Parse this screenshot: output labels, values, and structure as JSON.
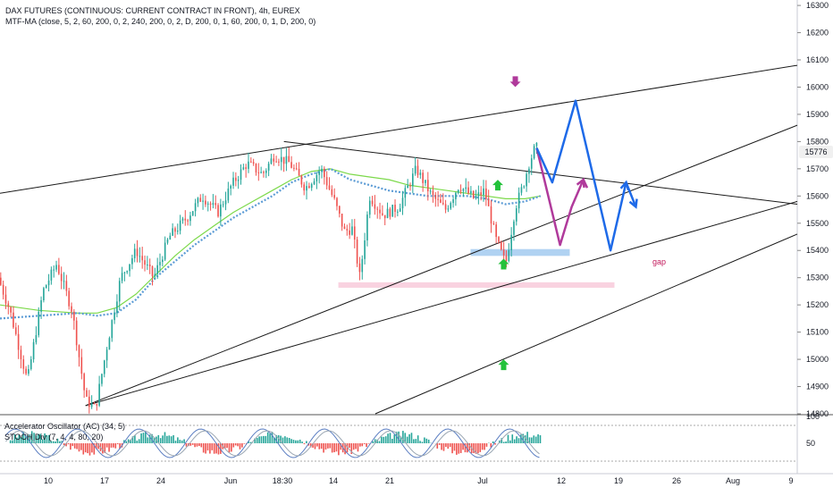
{
  "header": {
    "symbol_line": "DAX FUTURES (CONTINUOUS: CURRENT CONTRACT IN FRONT), 4h, EUREX",
    "indicator_line": "MTF-MA (close, 5, 2, 60, 200, 0, 2, 240, 200, 0, 2, D, 200, 0, 1, 60, 200, 0, 1, D, 200, 0)"
  },
  "oscillator": {
    "ac_label": "Accelerator Oscillator (AC) (34, 5)",
    "stoch_label": "STOCH Div (7, 4, 4, 80, 20)",
    "scale_top": "100",
    "scale_mid": "50"
  },
  "last_price": "15776",
  "annotations": {
    "gap_label": "gap"
  },
  "colors": {
    "up": "#26a69a",
    "down": "#ef5350",
    "forecast_blue": "#1e6ae8",
    "forecast_purple": "#b03a9b",
    "green_arrow": "#23c23b",
    "gap_zone": "#9cc7ef",
    "pink_zone": "#f8c7d8",
    "ma_blue": "#5b9bd5",
    "ma_green": "#7cd94a"
  },
  "chart_data": {
    "type": "candlestick",
    "title": "DAX FUTURES (CONTINUOUS: CURRENT CONTRACT IN FRONT), 4h, EUREX",
    "y_axis": {
      "ticks": [
        14800,
        14900,
        15000,
        15100,
        15200,
        15300,
        15400,
        15500,
        15600,
        15700,
        15800,
        15900,
        16000,
        16100,
        16200,
        16300
      ],
      "range": [
        14800,
        16320
      ]
    },
    "x_axis": {
      "tick_labels": [
        "10",
        "17",
        "24",
        "Jun",
        "18:30",
        "14",
        "21",
        "Jul",
        "12",
        "19",
        "26",
        "Aug",
        "9"
      ]
    },
    "price_path": [
      [
        0,
        15300
      ],
      [
        0.6,
        15180
      ],
      [
        1.5,
        14920
      ],
      [
        2.3,
        15250
      ],
      [
        3,
        15350
      ],
      [
        3.8,
        15180
      ],
      [
        4.5,
        14850
      ],
      [
        5,
        14820
      ],
      [
        5.6,
        15050
      ],
      [
        6.3,
        15300
      ],
      [
        7.1,
        15400
      ],
      [
        8,
        15300
      ],
      [
        8.8,
        15450
      ],
      [
        9.7,
        15520
      ],
      [
        10.5,
        15600
      ],
      [
        11.3,
        15540
      ],
      [
        12,
        15640
      ],
      [
        12.8,
        15720
      ],
      [
        13.6,
        15680
      ],
      [
        14.2,
        15750
      ],
      [
        15,
        15720
      ],
      [
        15.8,
        15630
      ],
      [
        16.6,
        15700
      ],
      [
        17.3,
        15580
      ],
      [
        17.8,
        15470
      ],
      [
        18.2,
        15480
      ],
      [
        18.6,
        15300
      ],
      [
        19.1,
        15600
      ],
      [
        19.8,
        15530
      ],
      [
        20.6,
        15560
      ],
      [
        21.5,
        15700
      ],
      [
        22.3,
        15600
      ],
      [
        23,
        15550
      ],
      [
        23.7,
        15640
      ],
      [
        24.5,
        15590
      ],
      [
        25,
        15620
      ],
      [
        25.6,
        15440
      ],
      [
        26.1,
        15350
      ],
      [
        26.6,
        15560
      ],
      [
        27,
        15640
      ],
      [
        27.3,
        15720
      ],
      [
        27.6,
        15776
      ]
    ],
    "forecast_blue": [
      [
        27.6,
        15776
      ],
      [
        28.4,
        15650
      ],
      [
        29.6,
        15950
      ],
      [
        31.4,
        15400
      ],
      [
        32.2,
        15650
      ],
      [
        32.7,
        15560
      ]
    ],
    "forecast_purple": [
      [
        27.6,
        15776
      ],
      [
        28.8,
        15420
      ],
      [
        29.4,
        15560
      ],
      [
        30,
        15660
      ],
      [
        30.2,
        15630
      ]
    ],
    "ma_blue": [
      [
        0,
        15150
      ],
      [
        2,
        15160
      ],
      [
        4,
        15170
      ],
      [
        5,
        15160
      ],
      [
        6,
        15170
      ],
      [
        7,
        15220
      ],
      [
        8,
        15300
      ],
      [
        9,
        15360
      ],
      [
        10,
        15420
      ],
      [
        11,
        15470
      ],
      [
        12,
        15520
      ],
      [
        13,
        15560
      ],
      [
        14,
        15600
      ],
      [
        15,
        15650
      ],
      [
        16,
        15680
      ],
      [
        17,
        15700
      ],
      [
        18,
        15660
      ],
      [
        19,
        15640
      ],
      [
        20,
        15620
      ],
      [
        21,
        15610
      ],
      [
        22,
        15600
      ],
      [
        23,
        15600
      ],
      [
        24,
        15600
      ],
      [
        25,
        15590
      ],
      [
        26,
        15570
      ],
      [
        27,
        15580
      ],
      [
        27.8,
        15600
      ]
    ],
    "ma_green": [
      [
        0,
        15200
      ],
      [
        2,
        15180
      ],
      [
        4,
        15170
      ],
      [
        5,
        15170
      ],
      [
        6,
        15190
      ],
      [
        7,
        15240
      ],
      [
        8,
        15310
      ],
      [
        9,
        15380
      ],
      [
        10,
        15440
      ],
      [
        11,
        15490
      ],
      [
        12,
        15540
      ],
      [
        13,
        15580
      ],
      [
        14,
        15620
      ],
      [
        15,
        15660
      ],
      [
        16,
        15690
      ],
      [
        17,
        15700
      ],
      [
        18,
        15680
      ],
      [
        19,
        15670
      ],
      [
        20,
        15660
      ],
      [
        21,
        15640
      ],
      [
        22,
        15630
      ],
      [
        23,
        15620
      ],
      [
        24,
        15610
      ],
      [
        25,
        15600
      ],
      [
        26,
        15590
      ],
      [
        27,
        15590
      ],
      [
        27.8,
        15600
      ]
    ],
    "trendlines": [
      {
        "name": "upper-resistance-line",
        "from": [
          0,
          15610
        ],
        "to": [
          41,
          16080
        ]
      },
      {
        "name": "upper-channel-line",
        "from": [
          14.6,
          15800
        ],
        "to": [
          41,
          15570
        ]
      },
      {
        "name": "rising-support-line",
        "from": [
          4.4,
          14830
        ],
        "to": [
          41,
          15860
        ]
      },
      {
        "name": "middle-support-line",
        "from": [
          4.4,
          14830
        ],
        "to": [
          41,
          15580
        ]
      },
      {
        "name": "lower-support-line",
        "from": [
          19.3,
          14800
        ],
        "to": [
          41,
          15460
        ]
      }
    ],
    "zones": [
      {
        "name": "gap-zone",
        "x": [
          24.2,
          29.3
        ],
        "y": [
          15380,
          15405
        ]
      },
      {
        "name": "pink-zone",
        "x": [
          17.4,
          31.6
        ],
        "y": [
          15263,
          15283
        ]
      }
    ],
    "markers": [
      {
        "name": "purple-down-arrow",
        "x": 26.5,
        "y": 16020,
        "dir": "down"
      },
      {
        "name": "green-up-arrow-1",
        "x": 25.6,
        "y": 15640,
        "dir": "up"
      },
      {
        "name": "green-up-arrow-2",
        "x": 25.9,
        "y": 15350,
        "dir": "up"
      },
      {
        "name": "green-up-arrow-3",
        "x": 25.9,
        "y": 14980,
        "dir": "up"
      }
    ]
  }
}
